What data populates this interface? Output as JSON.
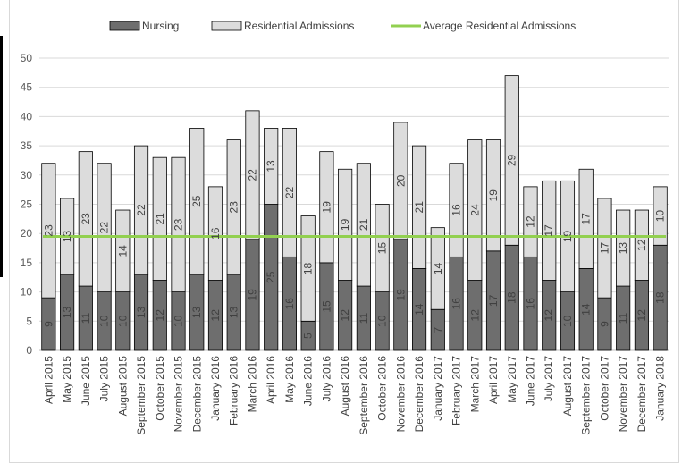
{
  "chart_data": {
    "type": "bar",
    "stacked": true,
    "categories": [
      "April 2015",
      "May 2015",
      "June 2015",
      "July 2015",
      "August 2015",
      "September 2015",
      "October 2015",
      "November 2015",
      "December 2015",
      "January 2016",
      "February 2016",
      "March 2016",
      "April 2016",
      "May 2016",
      "June 2016",
      "July 2016",
      "August 2016",
      "September 2016",
      "October 2016",
      "November 2016",
      "December 2016",
      "January 2017",
      "February 2017",
      "March 2017",
      "April 2017",
      "May 2017",
      "June 2017",
      "July 2017",
      "August 2017",
      "September 2017",
      "October 2017",
      "November 2017",
      "December 2017",
      "January 2018"
    ],
    "series": [
      {
        "name": "Nursing",
        "color": "#6e6e6e",
        "values": [
          9,
          13,
          11,
          10,
          10,
          13,
          12,
          10,
          13,
          12,
          13,
          19,
          25,
          16,
          5,
          15,
          12,
          11,
          10,
          19,
          14,
          7,
          16,
          12,
          17,
          18,
          16,
          12,
          10,
          14,
          9,
          11,
          12,
          18
        ]
      },
      {
        "name": "Residential Admissions",
        "color": "#dcdcdc",
        "values": [
          23,
          13,
          23,
          22,
          14,
          22,
          21,
          23,
          25,
          16,
          23,
          22,
          13,
          22,
          18,
          19,
          19,
          21,
          15,
          20,
          21,
          14,
          16,
          24,
          19,
          29,
          12,
          17,
          19,
          17,
          17,
          13,
          12,
          10
        ]
      }
    ],
    "average_line": {
      "name": "Average Residential Admissions",
      "value": 19.5,
      "color": "#92d050"
    },
    "ylim": [
      0,
      50
    ],
    "yticks": [
      0,
      5,
      10,
      15,
      20,
      25,
      30,
      35,
      40,
      45,
      50
    ],
    "grid": true,
    "legend_position": "top",
    "title": "",
    "xlabel": "",
    "ylabel": ""
  }
}
